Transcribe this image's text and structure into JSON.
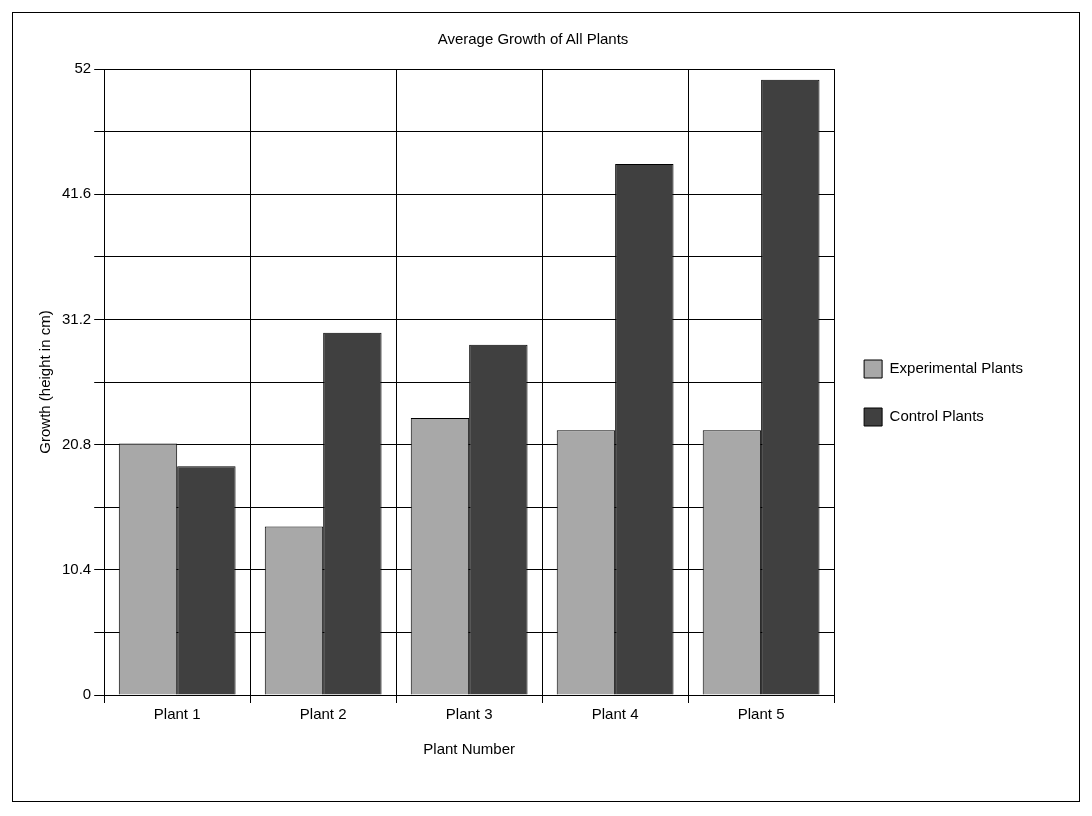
{
  "chart_data": {
    "type": "bar",
    "title": "Average Growth of All Plants",
    "xlabel": "Plant Number",
    "ylabel": "Growth (height in cm)",
    "categories": [
      "Plant 1",
      "Plant 2",
      "Plant 3",
      "Plant 4",
      "Plant 5"
    ],
    "series": [
      {
        "name": "Experimental Plants",
        "color": "#a8a8a8",
        "values": [
          20.9,
          14.0,
          23.0,
          22.0,
          22.0
        ]
      },
      {
        "name": "Control Plants",
        "color": "#404040",
        "values": [
          19.0,
          30.1,
          29.1,
          44.1,
          51.1
        ]
      }
    ],
    "ylim": [
      0,
      52
    ],
    "yticks": [
      0,
      {
        "value": 5.2,
        "label": null
      },
      10.4,
      {
        "value": 15.6,
        "label": null
      },
      20.8,
      {
        "value": 26,
        "label": null
      },
      31.2,
      {
        "value": 36.4,
        "label": null
      },
      41.6,
      {
        "value": 46.8,
        "label": null
      },
      52
    ],
    "grid": true,
    "legend": "right"
  }
}
